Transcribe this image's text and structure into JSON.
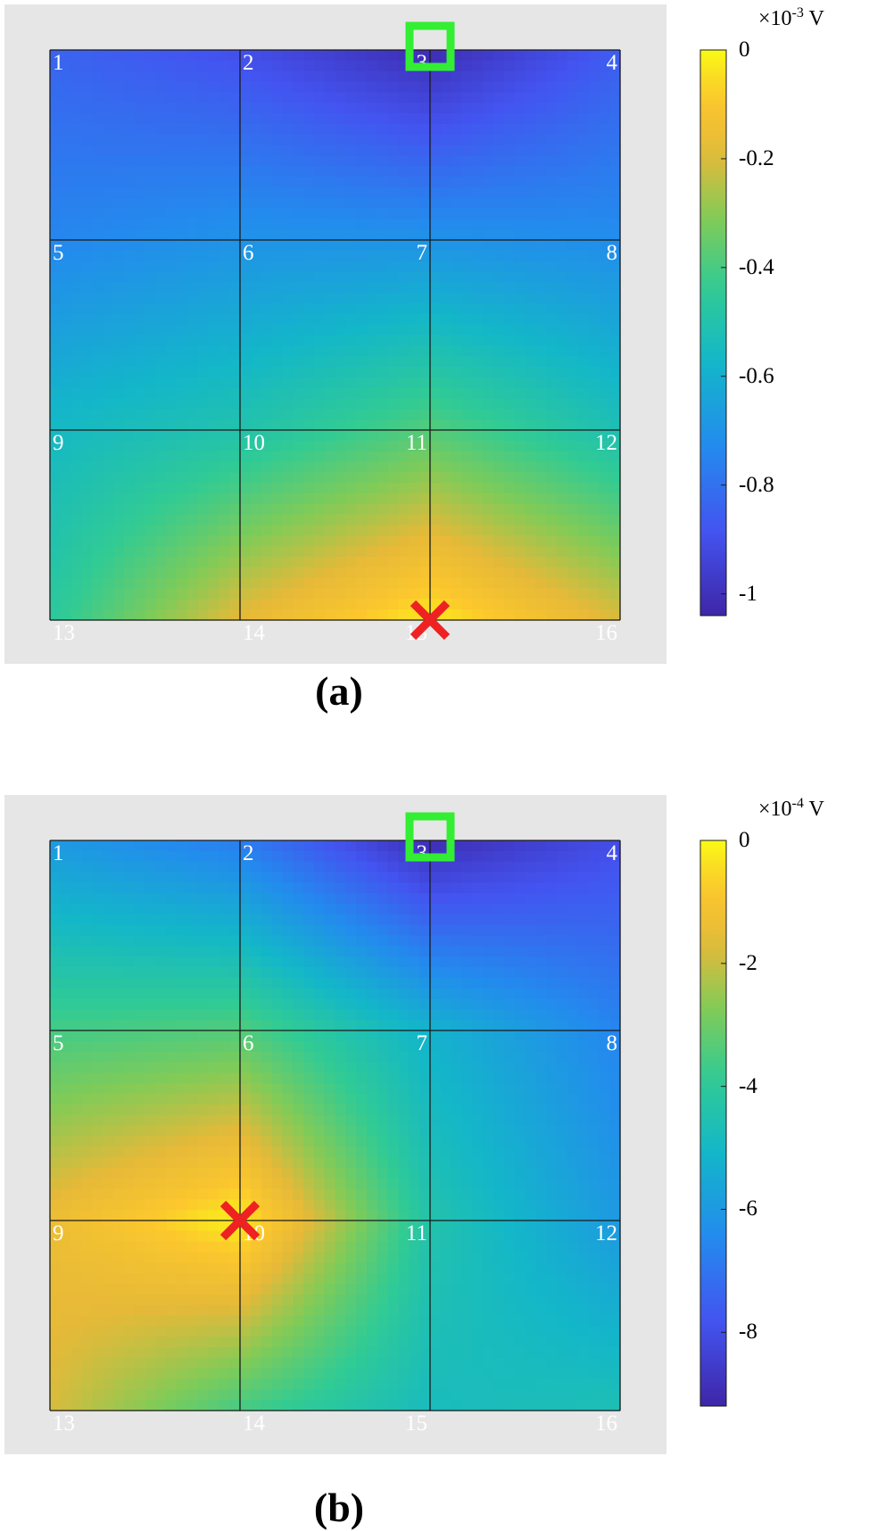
{
  "panels": [
    {
      "caption": "(a)",
      "colorbar": {
        "exponent_text": "×10",
        "exponent_sup": "-3",
        "unit_text": " V",
        "ticks": [
          "0",
          "-0.2",
          "-0.4",
          "-0.6",
          "-0.8",
          "-1"
        ],
        "min": -1.04,
        "max": 0
      },
      "nodes": [
        "1",
        "2",
        "3",
        "4",
        "5",
        "6",
        "7",
        "8",
        "9",
        "10",
        "11",
        "12",
        "13",
        "14",
        "15",
        "16"
      ],
      "node_values": [
        -0.84,
        -0.9,
        -1.02,
        -0.86,
        -0.74,
        -0.7,
        -0.7,
        -0.72,
        -0.56,
        -0.5,
        -0.38,
        -0.52,
        -0.46,
        -0.18,
        -0.02,
        -0.2
      ],
      "reference_electrode_node": "3",
      "fault_location_node": "15"
    },
    {
      "caption": "(b)",
      "colorbar": {
        "exponent_text": "×10",
        "exponent_sup": "-4",
        "unit_text": " V",
        "ticks": [
          "0",
          "-2",
          "-4",
          "-6",
          "-8"
        ],
        "min": -9.2,
        "max": 0
      },
      "nodes": [
        "1",
        "2",
        "3",
        "4",
        "5",
        "6",
        "7",
        "8",
        "9",
        "10",
        "11",
        "12",
        "13",
        "14",
        "15",
        "16"
      ],
      "node_values": [
        -6.0,
        -6.8,
        -9.0,
        -8.0,
        -3.6,
        -3.4,
        -5.2,
        -6.6,
        -1.4,
        -0.1,
        -4.4,
        -6.0,
        -1.8,
        -3.6,
        -4.8,
        -4.6
      ],
      "reference_electrode_node": "3",
      "fault_location_node": "10"
    }
  ],
  "colors": {
    "reference_marker": "#33ee33",
    "fault_marker": "#ee2222",
    "frame": "#e6e6e6"
  },
  "icons": {
    "reference_marker": "square-outline-icon",
    "fault_marker": "cross-icon"
  }
}
